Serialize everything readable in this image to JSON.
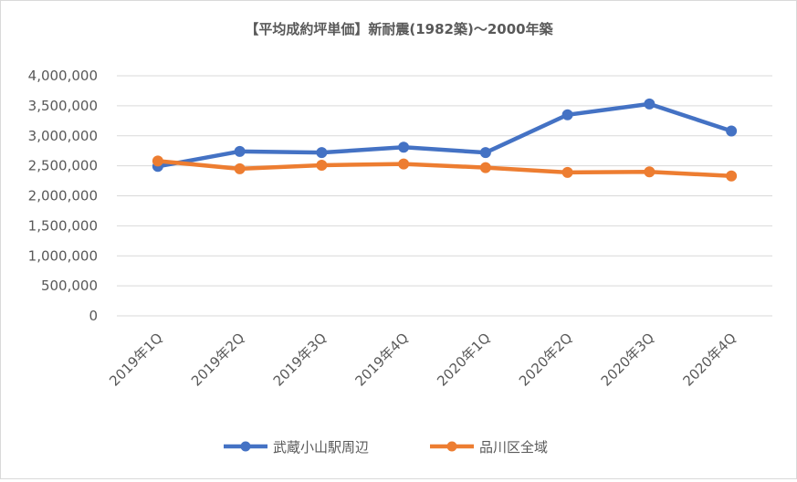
{
  "chart_data": {
    "type": "line",
    "title": "【平均成約坪単価】新耐震(1982築)～2000年築",
    "xlabel": "",
    "ylabel": "",
    "categories": [
      "2019年1Q",
      "2019年2Q",
      "2019年3Q",
      "2019年4Q",
      "2020年1Q",
      "2020年2Q",
      "2020年3Q",
      "2020年4Q"
    ],
    "ylim": [
      0,
      4000000
    ],
    "yticks": [
      0,
      500000,
      1000000,
      1500000,
      2000000,
      2500000,
      3000000,
      3500000,
      4000000
    ],
    "ytick_labels": [
      "0",
      "500,000",
      "1,000,000",
      "1,500,000",
      "2,000,000",
      "2,500,000",
      "3,000,000",
      "3,500,000",
      "4,000,000"
    ],
    "grid": true,
    "legend_position": "bottom",
    "series": [
      {
        "name": "武蔵小山駅周辺",
        "color": "#4472c4",
        "values": [
          2490000,
          2740000,
          2720000,
          2810000,
          2720000,
          3350000,
          3530000,
          3080000
        ]
      },
      {
        "name": "品川区全域",
        "color": "#ed7d31",
        "values": [
          2580000,
          2450000,
          2510000,
          2530000,
          2470000,
          2390000,
          2400000,
          2330000
        ]
      }
    ]
  }
}
